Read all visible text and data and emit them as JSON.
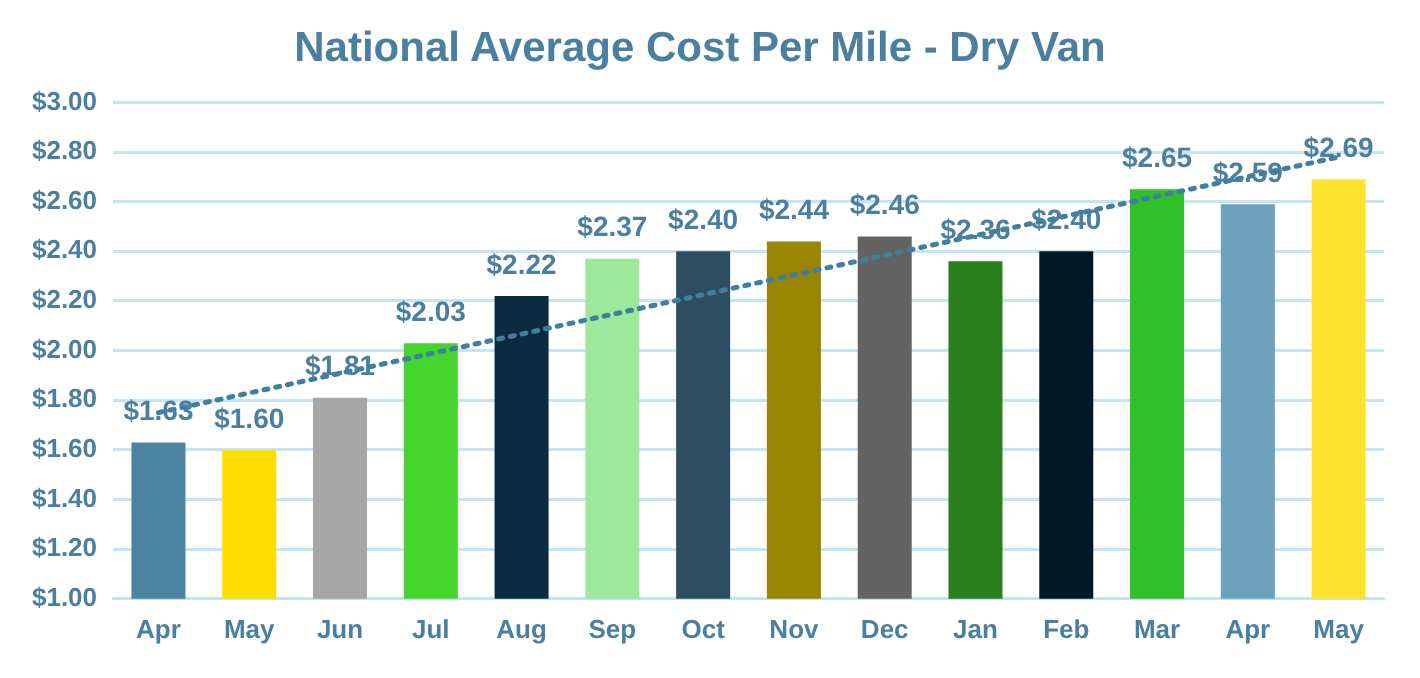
{
  "chart_data": {
    "type": "bar",
    "title": "National Average Cost Per Mile - Dry Van",
    "categories": [
      "Apr",
      "May",
      "Jun",
      "Jul",
      "Aug",
      "Sep",
      "Oct",
      "Nov",
      "Dec",
      "Jan",
      "Feb",
      "Mar",
      "Apr",
      "May"
    ],
    "series": [
      {
        "values": [
          1.63,
          1.6,
          1.81,
          2.03,
          2.22,
          2.37,
          2.4,
          2.44,
          2.46,
          2.36,
          2.4,
          2.65,
          2.59,
          2.69
        ],
        "colors": [
          "#4a84a0",
          "#ffdd00",
          "#a6a6a6",
          "#44d62c",
          "#0c2a40",
          "#9de89a",
          "#2f4d60",
          "#9a8500",
          "#636363",
          "#2a801c",
          "#011826",
          "#2fc02a",
          "#6ca2bc",
          "#ffe22e"
        ],
        "value_labels": [
          "$1.63",
          "$1.60",
          "$1.81",
          "$2.03",
          "$2.22",
          "$2.37",
          "$2.40",
          "$2.44",
          "$2.46",
          "$2.36",
          "$2.40",
          "$2.65",
          "$2.59",
          "$2.69"
        ]
      },
      {
        "type": "line",
        "color": "#3f7fa0",
        "line_style": "dotted",
        "marker": "none",
        "values": [
          1.75,
          null,
          null,
          null,
          null,
          null,
          null,
          null,
          null,
          null,
          null,
          null,
          null,
          2.78
        ]
      }
    ],
    "ylim": [
      1.0,
      3.0
    ],
    "yticks": [
      {
        "value": 1.0,
        "label": "$1.00"
      },
      {
        "value": 1.2,
        "label": "$1.20"
      },
      {
        "value": 1.4,
        "label": "$1.40"
      },
      {
        "value": 1.6,
        "label": "$1.60"
      },
      {
        "value": 1.8,
        "label": "$1.80"
      },
      {
        "value": 2.0,
        "label": "$2.00"
      },
      {
        "value": 2.2,
        "label": "$2.20"
      },
      {
        "value": 2.4,
        "label": "$2.40"
      },
      {
        "value": 2.6,
        "label": "$2.60"
      },
      {
        "value": 2.8,
        "label": "$2.80"
      },
      {
        "value": 3.0,
        "label": "$3.00"
      }
    ],
    "grid": "y",
    "legend": false
  }
}
